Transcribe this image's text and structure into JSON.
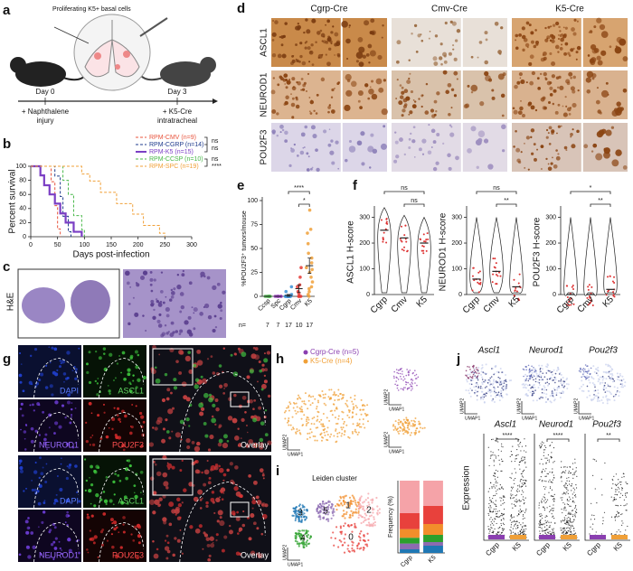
{
  "panel_labels": [
    "a",
    "b",
    "c",
    "d",
    "e",
    "f",
    "g",
    "h",
    "i",
    "j"
  ],
  "schematic": {
    "cells_label": "Proliferating K5+ basal cells",
    "day0": "Day 0",
    "day3": "Day 3",
    "step0": [
      "+ Naphthalene",
      "injury"
    ],
    "step3": [
      "+ K5-Cre",
      "intratracheal"
    ]
  },
  "ihc": {
    "columns": [
      "Cgrp-Cre",
      "Cmv-Cre",
      "K5-Cre"
    ],
    "rows": [
      "ASCL1",
      "NEUROD1",
      "POU2F3"
    ]
  },
  "he_label": "H&E",
  "chart_data": [
    {
      "type": "survival",
      "x_label": "Days post-infection",
      "y_label": "Percent survival",
      "xlim": [
        0,
        300
      ],
      "xticks": [
        0,
        50,
        100,
        150,
        200,
        250,
        300
      ],
      "ylim": [
        0,
        100
      ],
      "yticks": [
        0,
        20,
        40,
        60,
        80,
        100
      ],
      "annotations": [
        "ns",
        "ns",
        "ns",
        "****"
      ],
      "series": [
        {
          "name": "RPM-CMV (n=9)",
          "color": "#e8553e",
          "style": "dashed",
          "x": [
            0,
            38,
            38,
            45,
            45,
            50,
            50,
            55,
            55
          ],
          "values": [
            100,
            100,
            78,
            78,
            44,
            44,
            11,
            11,
            0
          ]
        },
        {
          "name": "RPM-CGRP (n=14)",
          "color": "#1f3b8c",
          "style": "dashed",
          "x": [
            0,
            45,
            45,
            55,
            55,
            60,
            60,
            70,
            70,
            75,
            75
          ],
          "values": [
            100,
            100,
            86,
            86,
            57,
            57,
            29,
            29,
            7,
            7,
            0
          ]
        },
        {
          "name": "RPM-K5 (n=15)",
          "color": "#7b3fc4",
          "style": "solid",
          "x": [
            0,
            18,
            18,
            25,
            25,
            35,
            35,
            45,
            45,
            55,
            55,
            65,
            65,
            80,
            80,
            95,
            95
          ],
          "values": [
            100,
            100,
            87,
            87,
            73,
            73,
            60,
            60,
            47,
            47,
            33,
            33,
            20,
            20,
            7,
            7,
            0
          ]
        },
        {
          "name": "RPM-CCSP (n=10)",
          "color": "#49b84a",
          "style": "dashed",
          "x": [
            0,
            60,
            60,
            70,
            70,
            80,
            80,
            95,
            95,
            100,
            100
          ],
          "values": [
            100,
            100,
            80,
            80,
            60,
            60,
            30,
            30,
            10,
            10,
            0
          ]
        },
        {
          "name": "RPM-SPC (n=19)",
          "color": "#f0a038",
          "style": "dashed",
          "x": [
            0,
            95,
            95,
            110,
            110,
            130,
            130,
            160,
            160,
            190,
            190,
            210,
            210,
            240,
            240,
            250,
            250
          ],
          "values": [
            100,
            100,
            89,
            89,
            79,
            79,
            63,
            63,
            47,
            47,
            32,
            32,
            16,
            16,
            5,
            5,
            0
          ]
        }
      ]
    },
    {
      "type": "dot",
      "y_label": "%POU2F3⁺ tumors/mouse",
      "categories": [
        "Ccsp",
        "Spc",
        "Cgrp",
        "Cmv",
        "K5"
      ],
      "colors": [
        "#49b84a",
        "#9c3fc4",
        "#3b8fd6",
        "#e53935",
        "#f0a038"
      ],
      "means": [
        0,
        0,
        1,
        8,
        32
      ],
      "errors": [
        0,
        0,
        1,
        4,
        8
      ],
      "points": [
        [
          0,
          0,
          0,
          0,
          0,
          0,
          0
        ],
        [
          0,
          0,
          0,
          0,
          0,
          0,
          0
        ],
        [
          0,
          0,
          0,
          0,
          0,
          0,
          0,
          0,
          0,
          0,
          0,
          0,
          0,
          0,
          2,
          5,
          10
        ],
        [
          0,
          0,
          0,
          0,
          3,
          5,
          10,
          12,
          20,
          30
        ],
        [
          0,
          2,
          5,
          8,
          10,
          15,
          20,
          25,
          28,
          30,
          35,
          40,
          45,
          55,
          66,
          70,
          90
        ]
      ],
      "n_label": "n=",
      "n_values": [
        7,
        7,
        17,
        10,
        17
      ],
      "ylim": [
        0,
        100
      ],
      "yticks": [
        0,
        25,
        50,
        75,
        100
      ],
      "annotations": [
        "****",
        "*"
      ]
    },
    {
      "type": "violin",
      "y_label": "ASCL1 H-score",
      "categories": [
        "Cgrp",
        "Cmv",
        "K5"
      ],
      "medians": [
        250,
        220,
        200
      ],
      "ylim": [
        0,
        330
      ],
      "yticks": [
        0,
        100,
        200,
        300
      ],
      "annotations": [
        "ns",
        "ns"
      ]
    },
    {
      "type": "violin",
      "y_label": "NEUROD1 H-score",
      "categories": [
        "Cgrp",
        "Cmv",
        "K5"
      ],
      "medians": [
        60,
        90,
        30
      ],
      "ylim": [
        0,
        330
      ],
      "yticks": [
        0,
        100,
        200,
        300
      ],
      "annotations": [
        "ns",
        "**"
      ]
    },
    {
      "type": "violin",
      "y_label": "POU2F3 H-score",
      "categories": [
        "Cgrp",
        "Cmv",
        "K5"
      ],
      "medians": [
        0,
        0,
        20
      ],
      "ylim": [
        0,
        330
      ],
      "yticks": [
        0,
        100,
        200,
        300
      ],
      "annotations": [
        "*",
        "**"
      ]
    },
    {
      "type": "stacked_bar",
      "y_label": "Frequency (%)",
      "categories": [
        "Cgrp",
        "K5"
      ],
      "ylim": [
        0,
        100
      ],
      "series": [
        {
          "name": "3",
          "color": "#1f77b4",
          "values": [
            5,
            10
          ]
        },
        {
          "name": "5",
          "color": "#8c6bb1",
          "values": [
            8,
            5
          ]
        },
        {
          "name": "4",
          "color": "#2ca02c",
          "values": [
            8,
            10
          ]
        },
        {
          "name": "1",
          "color": "#f28e2b",
          "values": [
            12,
            15
          ]
        },
        {
          "name": "0",
          "color": "#e8413c",
          "values": [
            22,
            25
          ]
        },
        {
          "name": "2",
          "color": "#f5a3a8",
          "values": [
            45,
            35
          ]
        }
      ]
    }
  ],
  "fluorescence": {
    "top": [
      "DAPI",
      "ASCL1",
      "NEUROD1",
      "POU2F3",
      "Overlay"
    ],
    "bottom": [
      "DAPI",
      "ASCL1",
      "NEUROD1",
      "POU2F3",
      "Overlay"
    ]
  },
  "umap": {
    "legend": [
      "Cgrp-Cre (n=5)",
      "K5-Cre (n=4)"
    ],
    "x_axis": "UMAP1",
    "y_axis": "UMAP2",
    "leiden_title": "Leiden cluster"
  },
  "genes": {
    "names": [
      "Ascl1",
      "Neurod1",
      "Pou2f3"
    ],
    "y_label": "Expression",
    "categories": [
      "Cgrp",
      "K5"
    ],
    "annotations": [
      "****",
      "****",
      "**"
    ]
  }
}
